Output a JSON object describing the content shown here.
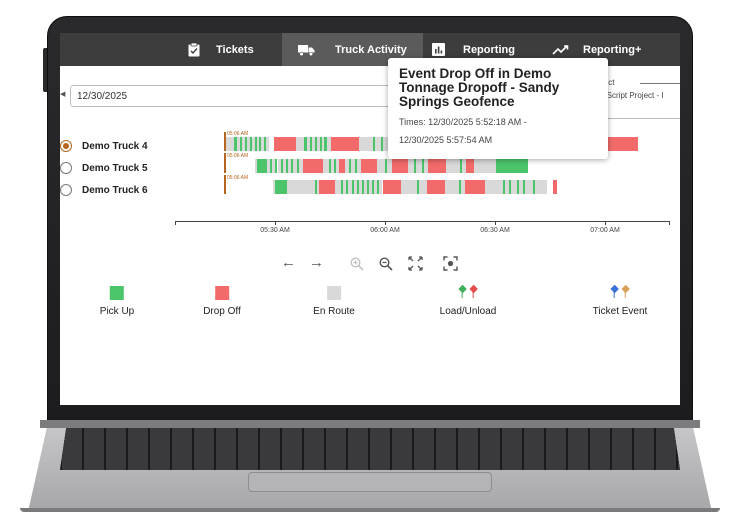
{
  "nav": {
    "items": [
      {
        "label": "Tickets",
        "icon": "clipboard-check-icon"
      },
      {
        "label": "Truck Activity",
        "icon": "truck-icon",
        "active": true
      },
      {
        "label": "Reporting",
        "icon": "bar-chart-icon"
      },
      {
        "label": "Reporting+",
        "icon": "trend-line-icon"
      }
    ]
  },
  "date": {
    "value": "12/30/2025"
  },
  "project": {
    "label": "ject",
    "value": "o Script Project - I"
  },
  "trucks": [
    {
      "label": "Demo Truck 4",
      "selected": true,
      "start_time": "05:06 AM"
    },
    {
      "label": "Demo Truck 5",
      "selected": false,
      "start_time": "05:06 AM"
    },
    {
      "label": "Demo Truck 6",
      "selected": false,
      "start_time": "05:06 AM"
    }
  ],
  "axis": {
    "labels": [
      "05:30 AM",
      "06:00 AM",
      "06:30 AM",
      "07:00 AM"
    ]
  },
  "legend": {
    "items": [
      {
        "label": "Pick Up",
        "color": "#4cc46a"
      },
      {
        "label": "Drop Off",
        "color": "#f26a6a"
      },
      {
        "label": "En Route",
        "color": "#d9d9d9"
      },
      {
        "label": "Load/Unload",
        "pin_colors": [
          "#3fae5a",
          "#e74c4c"
        ]
      },
      {
        "label": "Ticket Event",
        "pin_colors": [
          "#3b6fd6",
          "#d9a05b"
        ]
      }
    ]
  },
  "tooltip": {
    "title": "Event Drop Off in Demo Tonnage Dropoff - Sandy Springs Geofence",
    "times": "Times: 12/30/2025 5:52:18 AM - 12/30/2025 5:57:54 AM"
  },
  "colors": {
    "navbar": "#3d3d3e",
    "accent": "#b5651d"
  }
}
